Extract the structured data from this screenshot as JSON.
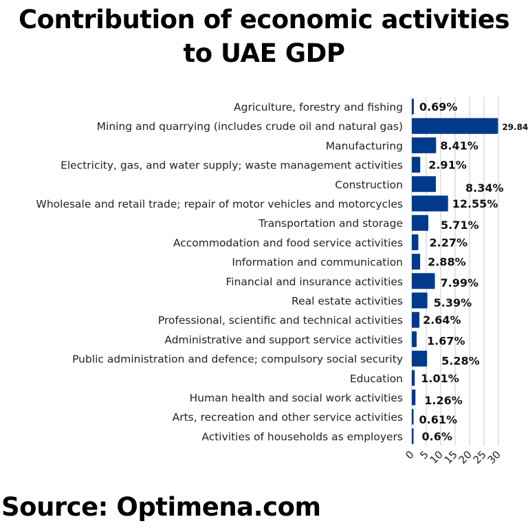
{
  "chart_data": {
    "type": "bar",
    "orientation": "horizontal",
    "title": "Contribution of economic activities to UAE GDP",
    "source": "Source: Optimena.com",
    "categories": [
      "Agriculture, forestry and fishing",
      "Mining and quarrying (includes crude oil and natural gas)",
      "Manufacturing",
      "Electricity, gas, and water supply; waste management activities",
      "Construction",
      "Wholesale and retail trade; repair of motor vehicles and motorcycles",
      "Transportation and storage",
      "Accommodation and food service activities",
      "Information and communication",
      "Financial and insurance activities",
      "Real estate activities",
      "Professional, scientific and technical activities",
      "Administrative and support service activities",
      "Public administration and defence; compulsory social security",
      "Education",
      "Human health and social work activities",
      "Arts, recreation and other service activities",
      "Activities of households as employers"
    ],
    "values": [
      0.69,
      29.84,
      8.41,
      2.91,
      8.34,
      12.55,
      5.71,
      2.27,
      2.88,
      7.99,
      5.39,
      2.64,
      1.67,
      5.28,
      1.01,
      1.26,
      0.61,
      0.6
    ],
    "data_labels": [
      "0.69%",
      "29.84",
      "8.41%",
      "2.91%",
      "8.34%",
      "12.55%",
      "5.71%",
      "2.27%",
      "2.88%",
      "7.99%",
      "5.39%",
      "2.64%",
      "1.67%",
      "5.28%",
      "1.01%",
      "1.26%",
      "0.61%",
      "0.6%"
    ],
    "xlim": [
      0,
      30
    ],
    "xticks": [
      "0",
      "5",
      "10",
      "15",
      "20",
      "25",
      "30"
    ],
    "xlabel": "",
    "ylabel": "",
    "grid": "vertical",
    "legend": "none",
    "bar_color": "#003a8c"
  }
}
